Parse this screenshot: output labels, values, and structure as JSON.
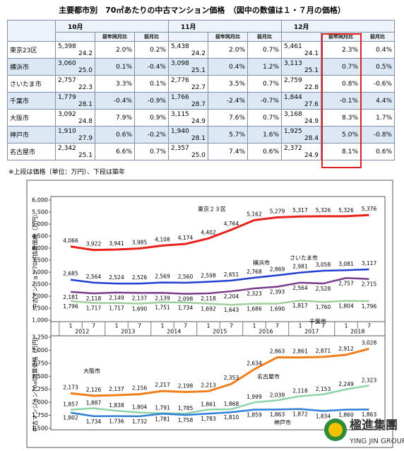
{
  "header": {
    "title": "主要都市別　70㎡あたりの中古マンション価格　（図中の数値は１・７月の価格）"
  },
  "table": {
    "months": [
      "10月",
      "11月",
      "12月"
    ],
    "subheaders": [
      "前年同月比",
      "前月比"
    ],
    "rows": [
      {
        "city": "東京23区",
        "cells": [
          [
            "5,398",
            "24.2",
            "2.0%",
            "0.2%"
          ],
          [
            "5,438",
            "24.2",
            "2.0%",
            "0.7%"
          ],
          [
            "5,461",
            "24.1",
            "2.3%",
            "0.4%"
          ]
        ]
      },
      {
        "city": "横浜市",
        "cells": [
          [
            "3,060",
            "25.0",
            "0.1%",
            "-0.4%"
          ],
          [
            "3,098",
            "25.1",
            "0.4%",
            "1.2%"
          ],
          [
            "3,113",
            "25.1",
            "0.7%",
            "0.5%"
          ]
        ]
      },
      {
        "city": "さいたま市",
        "cells": [
          [
            "2,757",
            "22.3",
            "3.3%",
            "0.1%"
          ],
          [
            "2,776",
            "22.7",
            "3.5%",
            "0.7%"
          ],
          [
            "2,759",
            "22.8",
            "0.8%",
            "-0.6%"
          ]
        ]
      },
      {
        "city": "千葉市",
        "cells": [
          [
            "1,779",
            "28.1",
            "-0.4%",
            "-0.9%"
          ],
          [
            "1,766",
            "28.7",
            "-2.4%",
            "-0.7%"
          ],
          [
            "1,844",
            "27.6",
            "-0.1%",
            "4.4%"
          ]
        ]
      },
      {
        "city": "大阪市",
        "cells": [
          [
            "3,092",
            "24.8",
            "7.9%",
            "0.9%"
          ],
          [
            "3,115",
            "24.9",
            "7.6%",
            "0.7%"
          ],
          [
            "3,168",
            "24.9",
            "8.3%",
            "1.7%"
          ]
        ]
      },
      {
        "city": "神戸市",
        "cells": [
          [
            "1,910",
            "27.9",
            "0.6%",
            "-0.2%"
          ],
          [
            "1,940",
            "28.1",
            "5.7%",
            "1.6%"
          ],
          [
            "1,925",
            "28.4",
            "5.0%",
            "-0.8%"
          ]
        ]
      },
      {
        "city": "名古屋市",
        "cells": [
          [
            "2,342",
            "25.1",
            "6.6%",
            "0.7%"
          ],
          [
            "2,357",
            "25.0",
            "7.4%",
            "0.6%"
          ],
          [
            "2,372",
            "24.9",
            "8.1%",
            "0.6%"
          ]
        ]
      }
    ]
  },
  "note": "※上段は価格（単位：万円）、下段は築年",
  "logo": {
    "name": "楹進集團",
    "sub": "YING JIN GROUP"
  },
  "chart_data": [
    {
      "type": "line",
      "ylabel": "中古マンション70㎡換算価格（万円）",
      "categories": [
        "1",
        "7",
        "1",
        "7",
        "1",
        "7",
        "1",
        "7",
        "1",
        "7",
        "1",
        "7",
        "1",
        "7"
      ],
      "years": [
        "2012",
        "2013",
        "2014",
        "2015",
        "2016",
        "2017",
        "2018"
      ],
      "ylim": [
        1000,
        6000
      ],
      "yticks": [
        {
          "value": 1000,
          "label": "1,000"
        },
        {
          "value": 1500,
          "label": "1,500"
        },
        {
          "value": 2000,
          "label": "2,000"
        },
        {
          "value": 2500,
          "label": "2,500"
        },
        {
          "value": 3000,
          "label": "3,000"
        },
        {
          "value": 3500,
          "label": "3,500"
        },
        {
          "value": 4000,
          "label": "4,000"
        },
        {
          "value": 4500,
          "label": "4,500"
        },
        {
          "value": 5000,
          "label": "5,000"
        },
        {
          "value": 5500,
          "label": "5,500"
        },
        {
          "value": 6000,
          "label": "6,000"
        }
      ],
      "series": [
        {
          "name": "東京２３区",
          "color": "#e8211b",
          "values": [
            4066,
            3922,
            3941,
            3985,
            4108,
            4174,
            4402,
            4764,
            5162,
            5279,
            5317,
            5326,
            5326,
            5376
          ],
          "value_labels": [
            "4,066",
            "3,922",
            "3,941",
            "3,985",
            "4,108",
            "4,174",
            "4,402",
            "4,764",
            "5,162",
            "5,279",
            "5,317",
            "5,326",
            "5,326",
            "5,376"
          ]
        },
        {
          "name": "横浜市",
          "color": "#1f3fd0",
          "values": [
            2685,
            2564,
            2524,
            2526,
            2569,
            2560,
            2598,
            2651,
            2768,
            2869,
            2981,
            3058,
            3081,
            3117
          ],
          "value_labels": [
            "2,685",
            "2,564",
            "2,524",
            "2,526",
            "2,569",
            "2,560",
            "2,598",
            "2,651",
            "2,768",
            "2,869",
            "2,981",
            "3,058",
            "3,081",
            "3,117"
          ]
        },
        {
          "name": "さいたま市",
          "color": "#7b3a8c",
          "values": [
            2181,
            2118,
            2149,
            2137,
            2139,
            2098,
            2118,
            2204,
            2323,
            2393,
            2564,
            2528,
            2757,
            2715
          ],
          "value_labels": [
            "2,181",
            "2,118",
            "2,149",
            "2,137",
            "2,139",
            "2,098",
            "2,118",
            "2,204",
            "2,323",
            "2,393",
            "2,564",
            "2,528",
            "2,757",
            "2,715"
          ]
        },
        {
          "name": "千葉市",
          "color": "#9fcf9b",
          "values": [
            1796,
            1717,
            1717,
            1690,
            1751,
            1734,
            1692,
            1643,
            1686,
            1690,
            1817,
            1760,
            1804,
            1796
          ],
          "value_labels": [
            "1,796",
            "1,717",
            "1,717",
            "1,690",
            "1,751",
            "1,734",
            "1,692",
            "1,643",
            "1,686",
            "1,690",
            "1,817",
            "1,760",
            "1,804",
            "1,796"
          ]
        }
      ]
    },
    {
      "type": "line",
      "ylabel": "中古マンション70㎡換算価格（万円）",
      "ylim": [
        1500,
        3250
      ],
      "yticks": [
        {
          "value": 1500,
          "label": "1,500"
        },
        {
          "value": 1750,
          "label": "1,750"
        },
        {
          "value": 2000,
          "label": "2,000"
        },
        {
          "value": 2250,
          "label": "2,250"
        },
        {
          "value": 2500,
          "label": "2,500"
        },
        {
          "value": 2750,
          "label": "2,750"
        },
        {
          "value": 3000,
          "label": "3,000"
        },
        {
          "value": 3250,
          "label": "3,250"
        }
      ],
      "series": [
        {
          "name": "大阪市",
          "color": "#f07e1b",
          "values": [
            2173,
            2126,
            2137,
            2156,
            2217,
            2198,
            2213,
            2353,
            2634,
            2863,
            2861,
            2871,
            2912,
            3028
          ],
          "value_labels": [
            "2,173",
            "2,126",
            "2,137",
            "2,156",
            "2,217",
            "2,198",
            "2,213",
            "2,353",
            "2,634",
            "2,863",
            "2,861",
            "2,871",
            "2,912",
            "3,028"
          ]
        },
        {
          "name": "名古屋市",
          "color": "#8fd4a8",
          "values": [
            1857,
            1887,
            1838,
            1804,
            1791,
            1785,
            1861,
            1868,
            1999,
            2039,
            2118,
            2153,
            2249,
            2323
          ],
          "value_labels": [
            "1,857",
            "1,887",
            "1,838",
            "1,804",
            "1,791",
            "1,785",
            "1,861",
            "1,868",
            "1,999",
            "2,039",
            "2,118",
            "2,153",
            "2,249",
            "2,323"
          ]
        },
        {
          "name": "神戸市",
          "color": "#2f7fd8",
          "values": [
            1802,
            1734,
            1736,
            1732,
            1781,
            1758,
            1783,
            1810,
            1859,
            1863,
            1872,
            1834,
            1860,
            1863
          ],
          "value_labels": [
            "1,802",
            "1,734",
            "1,736",
            "1,732",
            "1,781",
            "1,758",
            "1,783",
            "1,810",
            "1,859",
            "1,863",
            "1,872",
            "1,834",
            "1,860",
            "1,863"
          ]
        }
      ]
    }
  ]
}
